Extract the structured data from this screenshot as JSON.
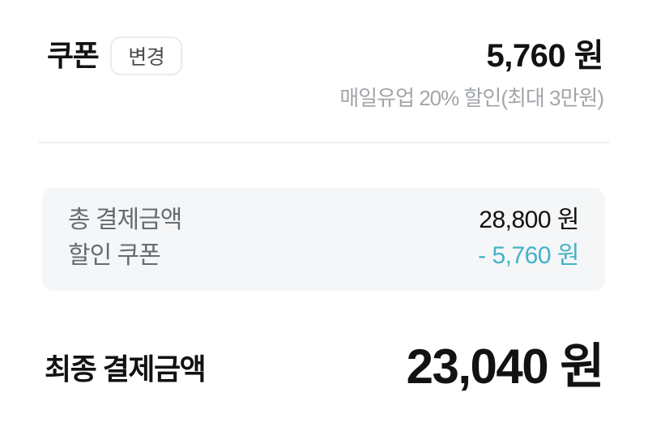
{
  "coupon_section": {
    "title": "쿠폰",
    "change_button_label": "변경",
    "amount": "5,760 원",
    "description": "매일유업 20% 할인(최대 3만원)"
  },
  "summary_box": {
    "rows": [
      {
        "label": "총 결제금액",
        "value": "28,800 원"
      },
      {
        "label": "할인 쿠폰",
        "value": "- 5,760 원"
      }
    ]
  },
  "final_section": {
    "label": "최종 결제금액",
    "amount": "23,040 원"
  },
  "colors": {
    "accent_teal": "#43b2c6",
    "box_bg": "#f5f6f8",
    "text_primary": "#121212",
    "text_muted": "#666b70",
    "text_faint": "#a2a6aa",
    "border_light": "#ebebeb"
  }
}
